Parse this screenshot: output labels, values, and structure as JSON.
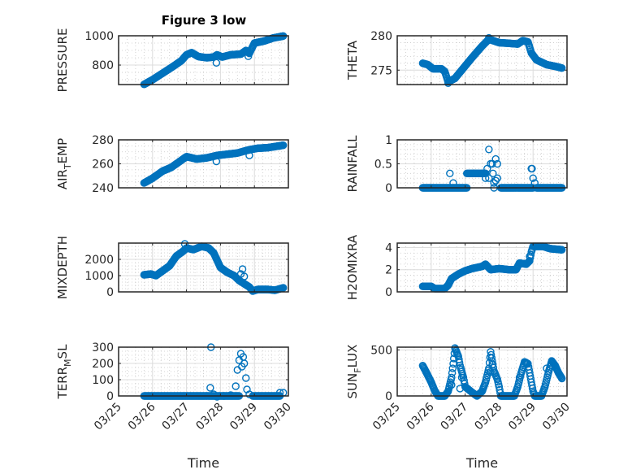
{
  "figure": {
    "title": "Figure 3 low",
    "marker_color": "#0072BD",
    "xlabel": "Time"
  },
  "chart_data": [
    {
      "type": "scatter",
      "title": "Figure 3 low",
      "ylabel": "PRESSURE",
      "xlabel": "",
      "x_ticks": [
        "03/25",
        "03/26",
        "03/27",
        "03/28",
        "03/29",
        "03/30"
      ],
      "xlim_days": [
        0,
        5
      ],
      "ylim": [
        667,
        1000
      ],
      "y_ticks": [
        800,
        1000
      ],
      "grid": true,
      "series_keypoints": [
        [
          0.75,
          668
        ],
        [
          1.0,
          700
        ],
        [
          1.3,
          745
        ],
        [
          1.6,
          790
        ],
        [
          1.85,
          830
        ],
        [
          2.0,
          870
        ],
        [
          2.15,
          885
        ],
        [
          2.35,
          858
        ],
        [
          2.6,
          850
        ],
        [
          2.8,
          855
        ],
        [
          2.9,
          870
        ],
        [
          3.05,
          855
        ],
        [
          3.3,
          870
        ],
        [
          3.6,
          875
        ],
        [
          3.75,
          900
        ],
        [
          3.85,
          880
        ],
        [
          4.0,
          950
        ],
        [
          4.3,
          965
        ],
        [
          4.55,
          985
        ],
        [
          4.85,
          998
        ]
      ],
      "outliers": [
        [
          2.88,
          815
        ],
        [
          3.82,
          860
        ]
      ]
    },
    {
      "type": "scatter",
      "ylabel": "THETA",
      "x_ticks": [
        "03/25",
        "03/26",
        "03/27",
        "03/28",
        "03/29",
        "03/30"
      ],
      "xlim_days": [
        0,
        5
      ],
      "ylim": [
        272.9,
        280
      ],
      "y_ticks": [
        275,
        280
      ],
      "grid": true,
      "series_keypoints": [
        [
          0.75,
          276.0
        ],
        [
          0.9,
          275.8
        ],
        [
          1.05,
          275.2
        ],
        [
          1.3,
          275.2
        ],
        [
          1.4,
          274.8
        ],
        [
          1.5,
          273.3
        ],
        [
          1.7,
          273.8
        ],
        [
          1.9,
          275.0
        ],
        [
          2.2,
          276.8
        ],
        [
          2.5,
          278.5
        ],
        [
          2.7,
          279.5
        ],
        [
          3.0,
          279.0
        ],
        [
          3.3,
          278.9
        ],
        [
          3.55,
          278.8
        ],
        [
          3.7,
          279.3
        ],
        [
          3.85,
          279.1
        ],
        [
          3.95,
          277.5
        ],
        [
          4.1,
          276.5
        ],
        [
          4.4,
          275.8
        ],
        [
          4.7,
          275.5
        ],
        [
          4.85,
          275.3
        ]
      ],
      "outliers": [
        [
          1.5,
          273.1
        ],
        [
          2.7,
          279.7
        ]
      ]
    },
    {
      "type": "scatter",
      "ylabel": "AIR_TEMP",
      "ylabel_display": [
        "AIR",
        "T",
        "EMP"
      ],
      "x_ticks": [
        "03/25",
        "03/26",
        "03/27",
        "03/28",
        "03/29",
        "03/30"
      ],
      "xlim_days": [
        0,
        5
      ],
      "ylim": [
        240,
        280
      ],
      "y_ticks": [
        240,
        260,
        280
      ],
      "grid": true,
      "series_keypoints": [
        [
          0.75,
          244
        ],
        [
          1.0,
          248
        ],
        [
          1.3,
          254
        ],
        [
          1.55,
          257
        ],
        [
          1.75,
          261
        ],
        [
          2.0,
          266
        ],
        [
          2.3,
          264
        ],
        [
          2.6,
          265
        ],
        [
          2.9,
          267
        ],
        [
          3.2,
          268
        ],
        [
          3.5,
          269
        ],
        [
          3.75,
          271
        ],
        [
          3.9,
          272
        ],
        [
          4.1,
          273
        ],
        [
          4.4,
          273.5
        ],
        [
          4.85,
          275.5
        ]
      ],
      "outliers": [
        [
          2.88,
          262
        ],
        [
          3.85,
          267
        ]
      ]
    },
    {
      "type": "scatter",
      "ylabel": "RAINFALL",
      "x_ticks": [
        "03/25",
        "03/26",
        "03/27",
        "03/28",
        "03/29",
        "03/30"
      ],
      "xlim_days": [
        0,
        5
      ],
      "ylim": [
        0,
        1
      ],
      "y_ticks": [
        0,
        0.5,
        1
      ],
      "grid": true,
      "series_segments": [
        {
          "from": 0.75,
          "to": 2.05,
          "value": 0
        },
        {
          "from": 2.05,
          "to": 2.6,
          "value": 0.3
        },
        {
          "from": 3.05,
          "to": 4.0,
          "value": 0
        },
        {
          "from": 4.1,
          "to": 4.85,
          "value": 0
        }
      ],
      "points": [
        [
          1.55,
          0.3
        ],
        [
          1.65,
          0.1
        ],
        [
          2.6,
          0.3
        ],
        [
          2.65,
          0.4
        ],
        [
          2.7,
          0.8
        ],
        [
          2.75,
          0.5
        ],
        [
          2.8,
          0.5
        ],
        [
          2.82,
          0.3
        ],
        [
          2.6,
          0.2
        ],
        [
          2.7,
          0.2
        ],
        [
          2.9,
          0.6
        ],
        [
          2.95,
          0.5
        ],
        [
          2.95,
          0.2
        ],
        [
          2.85,
          0.1
        ],
        [
          2.85,
          0.0
        ],
        [
          2.9,
          0.15
        ],
        [
          3.95,
          0.4
        ],
        [
          3.97,
          0.4
        ],
        [
          4.0,
          0.2
        ],
        [
          4.05,
          0.1
        ]
      ]
    },
    {
      "type": "scatter",
      "ylabel": "MIXDEPTH",
      "x_ticks": [
        "03/25",
        "03/26",
        "03/27",
        "03/28",
        "03/29",
        "03/30"
      ],
      "xlim_days": [
        0,
        5
      ],
      "ylim": [
        0,
        3000
      ],
      "y_ticks": [
        0,
        1000,
        2000
      ],
      "grid": true,
      "series_keypoints": [
        [
          0.75,
          1050
        ],
        [
          0.95,
          1100
        ],
        [
          1.1,
          1000
        ],
        [
          1.3,
          1300
        ],
        [
          1.5,
          1600
        ],
        [
          1.7,
          2200
        ],
        [
          1.9,
          2500
        ],
        [
          2.0,
          2700
        ],
        [
          2.2,
          2600
        ],
        [
          2.45,
          2800
        ],
        [
          2.65,
          2700
        ],
        [
          2.8,
          2400
        ],
        [
          3.0,
          1500
        ],
        [
          3.2,
          1200
        ],
        [
          3.4,
          1000
        ],
        [
          3.55,
          700
        ],
        [
          3.7,
          500
        ],
        [
          3.85,
          300
        ],
        [
          3.95,
          50
        ],
        [
          4.1,
          150
        ],
        [
          4.4,
          150
        ],
        [
          4.6,
          100
        ],
        [
          4.85,
          250
        ]
      ],
      "outliers": [
        [
          1.95,
          2950
        ],
        [
          3.6,
          1100
        ],
        [
          3.65,
          1400
        ],
        [
          3.7,
          950
        ]
      ]
    },
    {
      "type": "scatter",
      "ylabel": "H2OMIXRA",
      "x_ticks": [
        "03/25",
        "03/26",
        "03/27",
        "03/28",
        "03/29",
        "03/30"
      ],
      "xlim_days": [
        0,
        5
      ],
      "ylim": [
        0,
        4.4
      ],
      "y_ticks": [
        0,
        2,
        4
      ],
      "grid": true,
      "series_keypoints": [
        [
          0.75,
          0.5
        ],
        [
          1.0,
          0.5
        ],
        [
          1.1,
          0.3
        ],
        [
          1.4,
          0.3
        ],
        [
          1.5,
          0.6
        ],
        [
          1.6,
          1.2
        ],
        [
          1.8,
          1.6
        ],
        [
          2.0,
          1.9
        ],
        [
          2.2,
          2.1
        ],
        [
          2.5,
          2.3
        ],
        [
          2.6,
          2.5
        ],
        [
          2.75,
          2.0
        ],
        [
          3.0,
          2.1
        ],
        [
          3.3,
          2.0
        ],
        [
          3.5,
          2.0
        ],
        [
          3.6,
          2.6
        ],
        [
          3.8,
          2.5
        ],
        [
          3.9,
          2.8
        ],
        [
          3.95,
          3.6
        ],
        [
          4.0,
          4.1
        ],
        [
          4.3,
          4.1
        ],
        [
          4.5,
          3.9
        ],
        [
          4.85,
          3.8
        ]
      ],
      "outliers": [
        [
          3.9,
          3.2
        ]
      ]
    },
    {
      "type": "scatter",
      "ylabel": "TERR_MSL",
      "ylabel_display": [
        "TERR",
        "M",
        "SL"
      ],
      "xlabel": "Time",
      "x_ticks": [
        "03/25",
        "03/26",
        "03/27",
        "03/28",
        "03/29",
        "03/30"
      ],
      "xlim_days": [
        0,
        5
      ],
      "ylim": [
        0,
        300
      ],
      "y_ticks": [
        0,
        100,
        200,
        300
      ],
      "grid": true,
      "series_segments": [
        {
          "from": 0.75,
          "to": 3.55,
          "value": 0
        },
        {
          "from": 3.95,
          "to": 4.75,
          "value": 0
        }
      ],
      "points": [
        [
          2.72,
          300
        ],
        [
          2.7,
          50
        ],
        [
          2.8,
          10
        ],
        [
          2.9,
          -5
        ],
        [
          3.1,
          0
        ],
        [
          3.3,
          5
        ],
        [
          3.45,
          60
        ],
        [
          3.5,
          160
        ],
        [
          3.55,
          220
        ],
        [
          3.6,
          260
        ],
        [
          3.63,
          180
        ],
        [
          3.67,
          240
        ],
        [
          3.7,
          200
        ],
        [
          3.75,
          110
        ],
        [
          3.78,
          40
        ],
        [
          3.85,
          10
        ],
        [
          4.75,
          20
        ],
        [
          4.85,
          20
        ]
      ]
    },
    {
      "type": "scatter",
      "ylabel": "SUN_FLUX",
      "ylabel_display": [
        "SUN",
        "F",
        "LUX"
      ],
      "xlabel": "Time",
      "x_ticks": [
        "03/25",
        "03/26",
        "03/27",
        "03/28",
        "03/29",
        "03/30"
      ],
      "xlim_days": [
        0,
        5
      ],
      "ylim": [
        0,
        530
      ],
      "y_ticks": [
        0,
        500
      ],
      "grid": true,
      "series_keypoints": [
        [
          0.75,
          330
        ],
        [
          0.85,
          260
        ],
        [
          1.0,
          150
        ],
        [
          1.1,
          60
        ],
        [
          1.2,
          0
        ],
        [
          1.4,
          0
        ],
        [
          1.5,
          50
        ],
        [
          1.6,
          200
        ],
        [
          1.65,
          350
        ],
        [
          1.7,
          520
        ],
        [
          1.8,
          430
        ],
        [
          1.85,
          330
        ],
        [
          1.95,
          200
        ],
        [
          2.0,
          100
        ],
        [
          2.2,
          40
        ],
        [
          2.35,
          0
        ],
        [
          2.5,
          50
        ],
        [
          2.6,
          150
        ],
        [
          2.7,
          300
        ],
        [
          2.75,
          480
        ],
        [
          2.8,
          380
        ],
        [
          2.85,
          270
        ],
        [
          2.95,
          180
        ],
        [
          3.0,
          100
        ],
        [
          3.05,
          0
        ],
        [
          3.45,
          0
        ],
        [
          3.55,
          100
        ],
        [
          3.65,
          250
        ],
        [
          3.75,
          370
        ],
        [
          3.85,
          350
        ],
        [
          3.9,
          250
        ],
        [
          3.95,
          150
        ],
        [
          4.0,
          50
        ],
        [
          4.05,
          0
        ],
        [
          4.25,
          0
        ],
        [
          4.35,
          100
        ],
        [
          4.45,
          250
        ],
        [
          4.55,
          380
        ],
        [
          4.65,
          330
        ],
        [
          4.75,
          250
        ],
        [
          4.85,
          190
        ]
      ],
      "outliers": [
        [
          1.6,
          120
        ],
        [
          1.85,
          80
        ],
        [
          1.9,
          200
        ],
        [
          2.75,
          260
        ],
        [
          2.8,
          340
        ],
        [
          3.6,
          200
        ],
        [
          4.4,
          300
        ]
      ]
    }
  ]
}
